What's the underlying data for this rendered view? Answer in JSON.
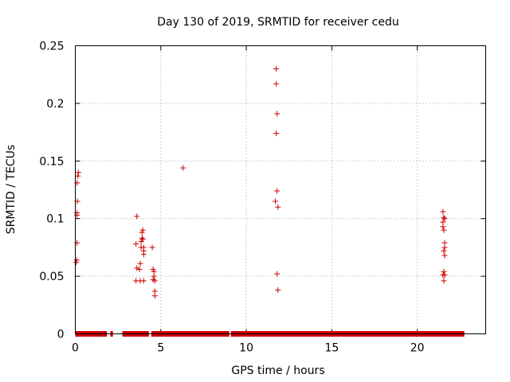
{
  "chart_data": {
    "type": "scatter",
    "title": "Day 130 of 2019, SRMTID for receiver cedu",
    "xlabel": "GPS time / hours",
    "ylabel": "SRMTID / TECUs",
    "xlim": [
      0,
      24
    ],
    "ylim": [
      0,
      0.25
    ],
    "xticks": [
      0,
      5,
      10,
      15,
      20
    ],
    "yticks": [
      0,
      0.05,
      0.1,
      0.15,
      0.2,
      0.25
    ],
    "xtick_labels": [
      "0",
      "5",
      "10",
      "15",
      "20"
    ],
    "ytick_labels": [
      "0",
      "0.05",
      "0.1",
      "0.15",
      "0.2",
      "0.25"
    ],
    "grid": true,
    "marker": "+",
    "series": [
      {
        "name": "SRMTID",
        "color": "#cc0000",
        "points": [
          [
            0.05,
            0.062
          ],
          [
            0.08,
            0.064
          ],
          [
            0.1,
            0.079
          ],
          [
            0.1,
            0.103
          ],
          [
            0.1,
            0.105
          ],
          [
            0.12,
            0.115
          ],
          [
            0.1,
            0.131
          ],
          [
            0.15,
            0.137
          ],
          [
            0.18,
            0.14
          ],
          [
            3.6,
            0.102
          ],
          [
            3.55,
            0.078
          ],
          [
            3.6,
            0.057
          ],
          [
            3.55,
            0.046
          ],
          [
            3.75,
            0.056
          ],
          [
            3.8,
            0.061
          ],
          [
            3.8,
            0.046
          ],
          [
            3.85,
            0.075
          ],
          [
            3.85,
            0.08
          ],
          [
            3.9,
            0.083
          ],
          [
            3.9,
            0.088
          ],
          [
            3.95,
            0.09
          ],
          [
            3.95,
            0.082
          ],
          [
            4.0,
            0.072
          ],
          [
            4.0,
            0.069
          ],
          [
            4.0,
            0.075
          ],
          [
            4.0,
            0.046
          ],
          [
            4.5,
            0.075
          ],
          [
            4.55,
            0.056
          ],
          [
            4.6,
            0.054
          ],
          [
            4.6,
            0.05
          ],
          [
            4.65,
            0.046
          ],
          [
            4.55,
            0.047
          ],
          [
            4.65,
            0.037
          ],
          [
            4.65,
            0.033
          ],
          [
            6.3,
            0.144
          ],
          [
            11.75,
            0.23
          ],
          [
            11.75,
            0.217
          ],
          [
            11.8,
            0.191
          ],
          [
            11.75,
            0.174
          ],
          [
            11.8,
            0.124
          ],
          [
            11.7,
            0.115
          ],
          [
            11.85,
            0.11
          ],
          [
            11.8,
            0.052
          ],
          [
            11.85,
            0.038
          ],
          [
            21.5,
            0.106
          ],
          [
            21.55,
            0.101
          ],
          [
            21.6,
            0.1
          ],
          [
            21.5,
            0.097
          ],
          [
            21.5,
            0.093
          ],
          [
            21.55,
            0.09
          ],
          [
            21.6,
            0.079
          ],
          [
            21.6,
            0.075
          ],
          [
            21.55,
            0.072
          ],
          [
            21.6,
            0.068
          ],
          [
            21.55,
            0.054
          ],
          [
            21.5,
            0.051
          ],
          [
            21.6,
            0.051
          ],
          [
            21.55,
            0.046
          ]
        ],
        "zero_segments": [
          [
            0.0,
            1.85
          ],
          [
            2.05,
            2.2
          ],
          [
            2.75,
            4.3
          ],
          [
            4.45,
            9.0
          ],
          [
            9.1,
            22.75
          ]
        ]
      }
    ]
  }
}
